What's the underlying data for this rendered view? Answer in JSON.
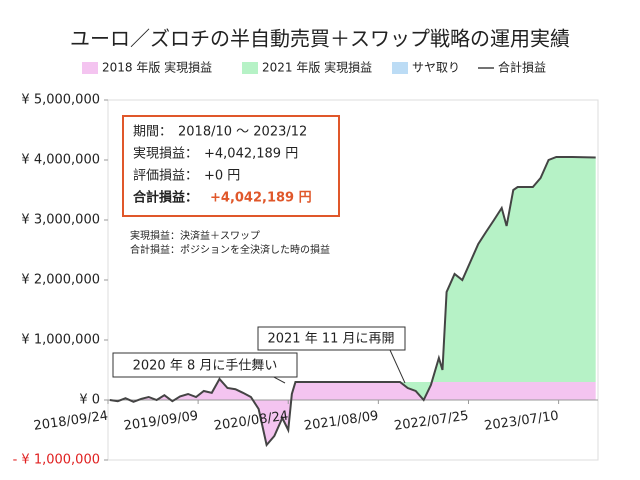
{
  "chart_data": {
    "type": "stacked_area",
    "title": "ユーロ／ズロチの半自動売買＋スワップ戦略の運用実績",
    "x": [
      "2018/10/01",
      "2018/11/01",
      "2018/12/01",
      "2019/01/01",
      "2019/02/01",
      "2019/03/01",
      "2019/04/01",
      "2019/05/01",
      "2019/06/01",
      "2019/07/01",
      "2019/08/01",
      "2019/09/01",
      "2019/10/01",
      "2019/11/01",
      "2019/12/01",
      "2020/01/01",
      "2020/02/01",
      "2020/03/01",
      "2020/04/01",
      "2020/05/01",
      "2020/06/01",
      "2020/07/01",
      "2020/08/01",
      "2020/08/24",
      "2020/09/07",
      "2020/09/21",
      "2021/11/01",
      "2021/12/01",
      "2022/01/01",
      "2022/02/01",
      "2022/03/01",
      "2022/04/01",
      "2022/04/15",
      "2022/05/01",
      "2022/06/01",
      "2022/07/01",
      "2022/08/01",
      "2022/09/01",
      "2022/10/01",
      "2022/11/01",
      "2022/12/01",
      "2022/12/20",
      "2023/01/15",
      "2023/02/01",
      "2023/03/01",
      "2023/04/01",
      "2023/05/01",
      "2023/06/01",
      "2023/07/01",
      "2023/09/01",
      "2023/12/01"
    ],
    "series": [
      {
        "name": "2018 年版 実現損益",
        "color": "#f4c4f0",
        "values": [
          0,
          -20000,
          30000,
          -30000,
          20000,
          50000,
          0,
          80000,
          -20000,
          60000,
          100000,
          50000,
          150000,
          120000,
          350000,
          200000,
          180000,
          120000,
          50000,
          -150000,
          -750000,
          -600000,
          -300000,
          -500000,
          100000,
          300000,
          300000,
          300000,
          300000,
          300000,
          300000,
          300000,
          300000,
          300000,
          300000,
          300000,
          300000,
          300000,
          300000,
          300000,
          300000,
          300000,
          300000,
          300000,
          300000,
          300000,
          300000,
          300000,
          300000,
          300000,
          300000
        ]
      },
      {
        "name": "2021 年版 実現損益",
        "color": "#b6f2c6",
        "values": [
          null,
          null,
          null,
          null,
          null,
          null,
          null,
          null,
          null,
          null,
          null,
          null,
          null,
          null,
          null,
          null,
          null,
          null,
          null,
          null,
          null,
          null,
          null,
          null,
          null,
          null,
          0,
          -100000,
          -150000,
          -300000,
          -50000,
          400000,
          200000,
          1500000,
          1800000,
          1700000,
          2000000,
          2300000,
          2500000,
          2700000,
          2900000,
          2600000,
          3200000,
          3250000,
          3250000,
          3250000,
          3400000,
          3700000,
          3750000,
          3750000,
          3742189
        ]
      },
      {
        "name": "サヤ取り",
        "color": "#bcdcf5",
        "values": [
          0,
          0,
          0,
          0,
          0,
          0,
          0,
          0,
          0,
          0,
          0,
          0,
          0,
          0,
          0,
          0,
          0,
          0,
          0,
          0,
          0,
          0,
          0,
          0,
          0,
          0,
          0,
          0,
          0,
          0,
          0,
          0,
          0,
          0,
          0,
          0,
          0,
          0,
          0,
          0,
          0,
          0,
          0,
          0,
          0,
          0,
          0,
          0,
          0,
          0,
          0
        ]
      },
      {
        "name": "合計損益",
        "color": "#444444",
        "type": "line",
        "values": [
          0,
          -20000,
          30000,
          -30000,
          20000,
          50000,
          0,
          80000,
          -20000,
          60000,
          100000,
          50000,
          150000,
          120000,
          350000,
          200000,
          180000,
          120000,
          50000,
          -150000,
          -750000,
          -600000,
          -300000,
          -500000,
          100000,
          300000,
          300000,
          200000,
          150000,
          0,
          250000,
          700000,
          500000,
          1800000,
          2100000,
          2000000,
          2300000,
          2600000,
          2800000,
          3000000,
          3200000,
          2900000,
          3500000,
          3550000,
          3550000,
          3550000,
          3700000,
          4000000,
          4050000,
          4050000,
          4042189
        ]
      }
    ],
    "xlim": [
      "2018/09/24",
      "2023/12/10"
    ],
    "xticks": [
      "2018/09/24",
      "2019/09/09",
      "2020/08/24",
      "2021/08/09",
      "2022/07/25",
      "2023/07/10"
    ],
    "ylim": [
      -1000000,
      5000000
    ],
    "yticks": [
      {
        "value": -1000000,
        "label": "- ¥ 1,000,000"
      },
      {
        "value": 0,
        "label": "¥ 0"
      },
      {
        "value": 1000000,
        "label": "¥ 1,000,000"
      },
      {
        "value": 2000000,
        "label": "¥ 2,000,000"
      },
      {
        "value": 3000000,
        "label": "¥ 3,000,000"
      },
      {
        "value": 4000000,
        "label": "¥ 4,000,000"
      },
      {
        "value": 5000000,
        "label": "¥ 5,000,000"
      }
    ],
    "summary": [
      {
        "label": "期間：",
        "value": "2018/10 〜 2023/12"
      },
      {
        "label": "実現損益：",
        "value": "+4,042,189 円"
      },
      {
        "label": "評価損益：",
        "value": "+0 円"
      },
      {
        "label": "合計損益：",
        "value": "+4,042,189 円"
      }
    ],
    "notes": [
      "実現損益：決済益＋スワップ",
      "合計損益：ポジションを全決済した時の損益"
    ],
    "annotations": [
      "2020 年 8 月に手仕舞い",
      "2021 年 11 月に再開"
    ]
  }
}
